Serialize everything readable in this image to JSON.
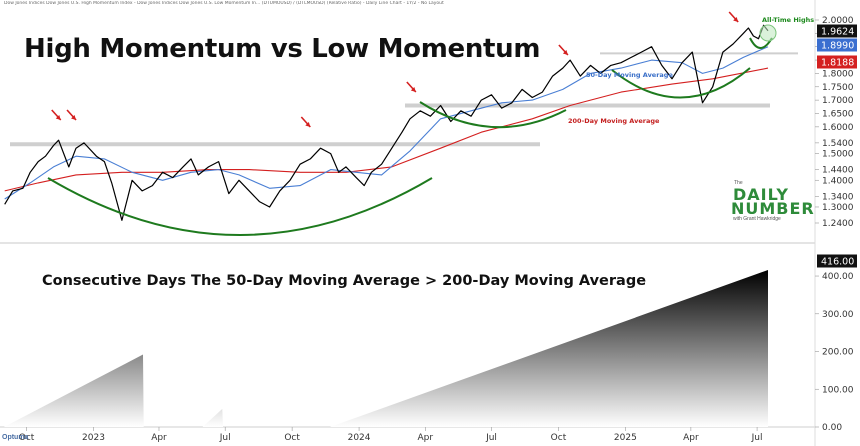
{
  "header_text": "Dow Jones Indices Dow Jones U.S. High Momentum Index - Dow Jones Indices Dow Jones U.S. Low Momentum In... (DTUMOUSD) / (DTLMOUSD) (Relative Ratio) - Daily Line Chart - 1Y/2 - No Layout",
  "title": "High Momentum vs Low Momentum",
  "logo": {
    "the": "The",
    "daily": "DAILY",
    "number": "NUMBER",
    "with": "with Grant Hawkridge"
  },
  "optuma": "Optuma",
  "chart_data": [
    {
      "type": "line",
      "title": "High Momentum vs Low Momentum",
      "x_ticks": [
        "Oct",
        "2023",
        "Apr",
        "Jul",
        "Oct",
        "2024",
        "Apr",
        "Jul",
        "Oct",
        "2025",
        "Apr",
        "Jul"
      ],
      "y_ticks": [
        "1.2400",
        "1.3000",
        "1.3400",
        "1.4000",
        "1.4400",
        "1.5000",
        "1.5400",
        "1.6000",
        "1.6500",
        "1.7000",
        "1.7500",
        "1.8000",
        "1.8500",
        "1.9000",
        "1.9500",
        "2.0000"
      ],
      "ylim": [
        1.24,
        2.03
      ],
      "last_values": {
        "ratio": "1.9624",
        "ma50": "1.8990",
        "ma200": "1.8188"
      },
      "colors": {
        "ratio": "#000000",
        "ma50": "#4a7fd4",
        "ma200": "#d42020",
        "arc": "#1e7a1e",
        "arrow": "#d42020",
        "support": "#cfcfcf"
      },
      "series": [
        {
          "name": "",
          "x": [
            "2022-09-01",
            "2022-09-12",
            "2022-09-26",
            "2022-10-06",
            "2022-10-17",
            "2022-10-27",
            "2022-11-07",
            "2022-11-14",
            "2022-11-28",
            "2022-12-08",
            "2022-12-19",
            "2023-01-05",
            "2023-01-16",
            "2023-01-26",
            "2023-02-09",
            "2023-02-23",
            "2023-03-09",
            "2023-03-23",
            "2023-04-06",
            "2023-04-20",
            "2023-05-04",
            "2023-05-15",
            "2023-05-25",
            "2023-06-08",
            "2023-06-22",
            "2023-07-06",
            "2023-07-20",
            "2023-08-03",
            "2023-08-17",
            "2023-08-31",
            "2023-09-14",
            "2023-09-28",
            "2023-10-12",
            "2023-10-26",
            "2023-11-09",
            "2023-11-23",
            "2023-12-04",
            "2023-12-14",
            "2023-12-28",
            "2024-01-08",
            "2024-01-18",
            "2024-02-01",
            "2024-02-15",
            "2024-02-29",
            "2024-03-11",
            "2024-03-25",
            "2024-04-08",
            "2024-04-22",
            "2024-05-06",
            "2024-05-20",
            "2024-06-03",
            "2024-06-17",
            "2024-07-01",
            "2024-07-15",
            "2024-07-29",
            "2024-08-12",
            "2024-08-26",
            "2024-09-09",
            "2024-09-23",
            "2024-10-07",
            "2024-10-17",
            "2024-10-31",
            "2024-11-14",
            "2024-11-28",
            "2024-12-12",
            "2024-12-26",
            "2025-01-09",
            "2025-01-23",
            "2025-02-06",
            "2025-02-20",
            "2025-03-06",
            "2025-03-20",
            "2025-04-03",
            "2025-04-17",
            "2025-05-01",
            "2025-05-15",
            "2025-05-29",
            "2025-06-12",
            "2025-06-19",
            "2025-06-26",
            "2025-07-03",
            "2025-07-10",
            "2025-07-16"
          ],
          "y": [
            1.31,
            1.36,
            1.37,
            1.43,
            1.47,
            1.49,
            1.53,
            1.55,
            1.45,
            1.52,
            1.54,
            1.49,
            1.47,
            1.39,
            1.25,
            1.4,
            1.36,
            1.38,
            1.43,
            1.41,
            1.45,
            1.48,
            1.42,
            1.45,
            1.47,
            1.35,
            1.4,
            1.36,
            1.32,
            1.3,
            1.36,
            1.4,
            1.46,
            1.48,
            1.52,
            1.5,
            1.43,
            1.45,
            1.41,
            1.38,
            1.43,
            1.46,
            1.52,
            1.58,
            1.63,
            1.66,
            1.64,
            1.68,
            1.62,
            1.66,
            1.64,
            1.7,
            1.72,
            1.67,
            1.69,
            1.74,
            1.71,
            1.73,
            1.79,
            1.82,
            1.85,
            1.79,
            1.83,
            1.8,
            1.83,
            1.84,
            1.86,
            1.88,
            1.9,
            1.83,
            1.78,
            1.84,
            1.88,
            1.69,
            1.75,
            1.88,
            1.91,
            1.95,
            1.97,
            1.94,
            1.93,
            1.98,
            1.96
          ]
        },
        {
          "name": "50-Day Moving Average",
          "x": [
            "2022-09-01",
            "2022-10-06",
            "2022-11-07",
            "2022-12-08",
            "2023-01-16",
            "2023-02-23",
            "2023-04-06",
            "2023-05-15",
            "2023-06-22",
            "2023-07-20",
            "2023-08-31",
            "2023-10-12",
            "2023-11-23",
            "2023-12-28",
            "2024-02-01",
            "2024-03-11",
            "2024-04-22",
            "2024-06-03",
            "2024-07-15",
            "2024-08-26",
            "2024-10-07",
            "2024-11-14",
            "2024-12-26",
            "2025-02-06",
            "2025-03-20",
            "2025-04-17",
            "2025-05-15",
            "2025-06-12",
            "2025-07-16"
          ],
          "y": [
            1.33,
            1.39,
            1.45,
            1.49,
            1.48,
            1.43,
            1.4,
            1.43,
            1.44,
            1.42,
            1.37,
            1.38,
            1.44,
            1.43,
            1.42,
            1.51,
            1.63,
            1.66,
            1.69,
            1.7,
            1.74,
            1.8,
            1.82,
            1.85,
            1.84,
            1.8,
            1.82,
            1.86,
            1.9
          ]
        },
        {
          "name": "200-Day Moving Average",
          "x": [
            "2022-09-01",
            "2022-10-17",
            "2022-12-08",
            "2023-02-09",
            "2023-04-06",
            "2023-06-08",
            "2023-08-03",
            "2023-10-12",
            "2023-12-14",
            "2024-02-15",
            "2024-04-22",
            "2024-06-17",
            "2024-08-26",
            "2024-10-17",
            "2024-12-26",
            "2025-03-06",
            "2025-05-01",
            "2025-07-16"
          ],
          "y": [
            1.36,
            1.39,
            1.42,
            1.43,
            1.43,
            1.44,
            1.44,
            1.43,
            1.43,
            1.45,
            1.52,
            1.58,
            1.63,
            1.68,
            1.73,
            1.76,
            1.78,
            1.82
          ]
        }
      ],
      "annotations": [
        "50-Day Moving Average",
        "200-Day Moving Average",
        "All-Time Highs"
      ],
      "support_lines": [
        1.535,
        1.68,
        1.875
      ],
      "arrow_dates": [
        "2022-11-17",
        "2022-12-08",
        "2023-10-26",
        "2024-03-19",
        "2024-10-14",
        "2025-06-05"
      ]
    },
    {
      "type": "area",
      "title": "Consecutive Days The 50-Day Moving Average > 200-Day Moving Average",
      "y_ticks": [
        "0.00",
        "100.00",
        "200.00",
        "300.00",
        "400.00"
      ],
      "ylim": [
        0,
        440
      ],
      "last_value": "416.00",
      "x": [
        "2022-08-31",
        "2023-03-10",
        "2023-03-11",
        "2023-05-31",
        "2023-06-27",
        "2023-06-28",
        "2023-11-22",
        "2025-07-16"
      ],
      "values": [
        0,
        192,
        0,
        0,
        48,
        0,
        0,
        416
      ]
    }
  ]
}
